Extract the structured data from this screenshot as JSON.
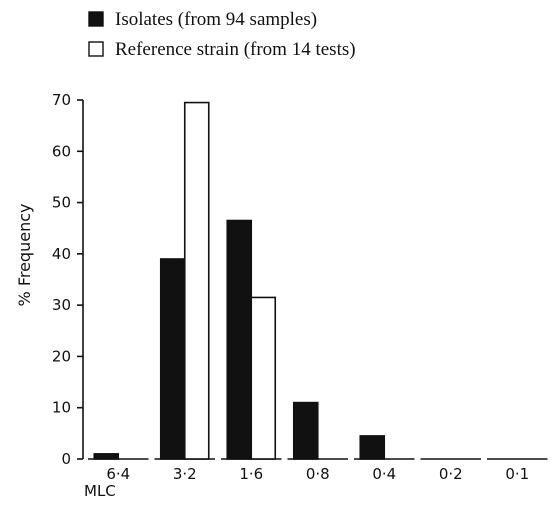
{
  "chart_data": {
    "type": "bar",
    "title": "",
    "xlabel": "MLC",
    "ylabel": "% Frequency",
    "categories": [
      "6·4",
      "3·2",
      "1·6",
      "0·8",
      "0·4",
      "0·2",
      "0·1"
    ],
    "ylim": [
      0,
      70
    ],
    "yticks": [
      0,
      10,
      20,
      30,
      40,
      50,
      60,
      70
    ],
    "grid": false,
    "legend_position": "top-left",
    "series": [
      {
        "name": "Isolates (from 94 samples)",
        "fill": "#111111",
        "values": [
          1,
          39,
          46.5,
          11,
          4.5,
          0,
          0
        ]
      },
      {
        "name": "Reference strain (from 14 tests)",
        "fill": "#ffffff",
        "values": [
          0,
          69.5,
          31.5,
          0,
          0,
          0,
          0
        ]
      }
    ]
  }
}
